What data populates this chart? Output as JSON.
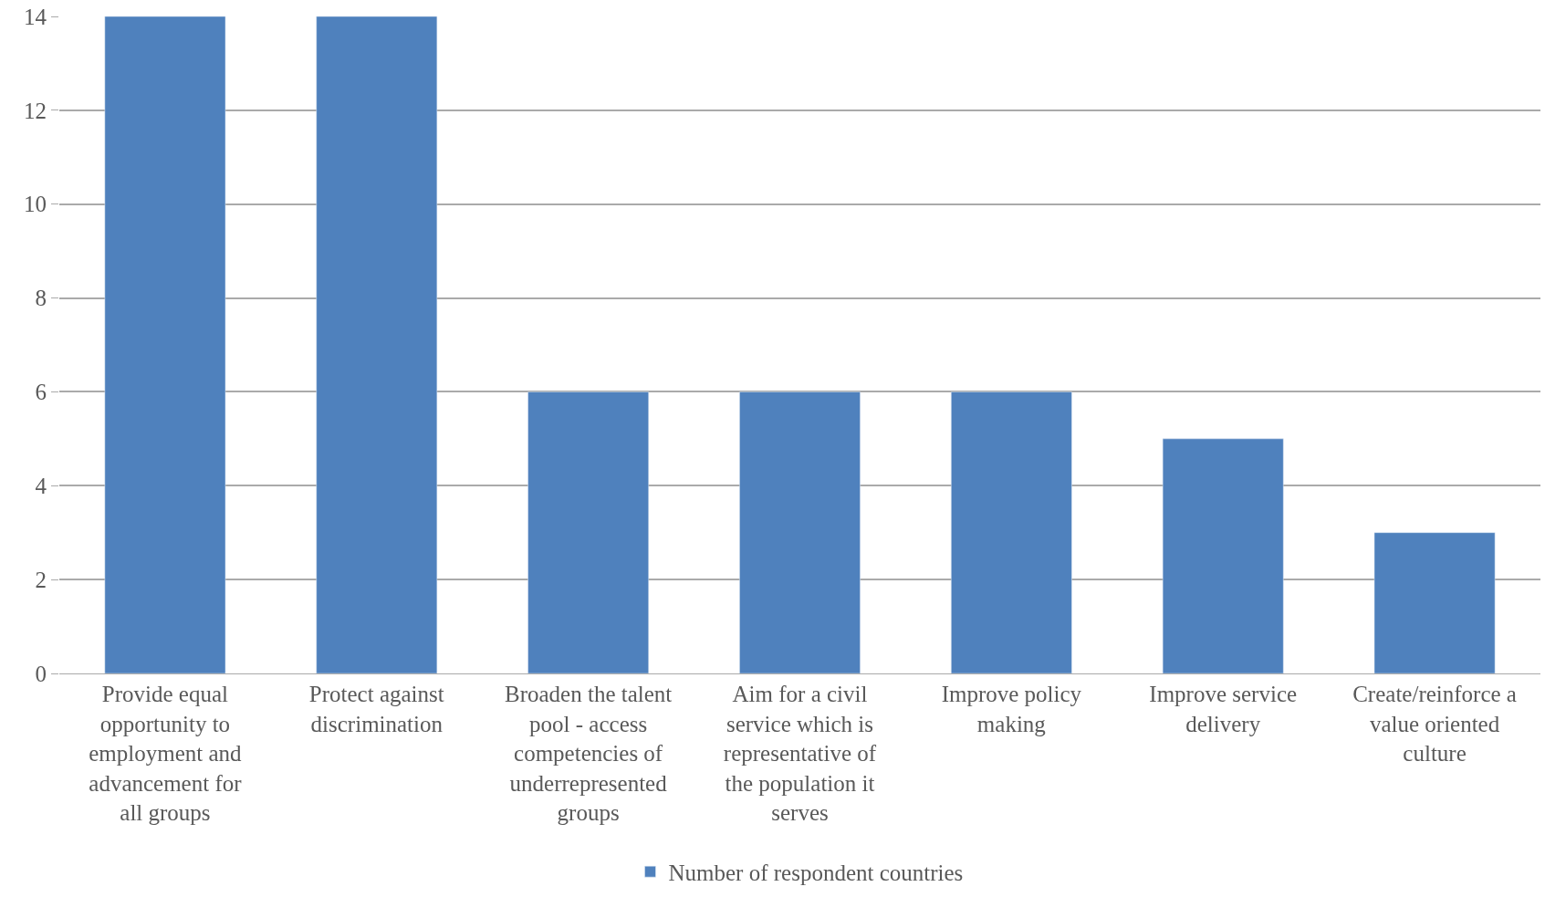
{
  "chart_data": {
    "type": "bar",
    "categories": [
      "Provide equal opportunity to employment and advancement for all groups",
      "Protect against discrimination",
      "Broaden the talent pool - access competencies of underrepresented groups",
      "Aim for a civil service which is representative of the population it serves",
      "Improve policy making",
      "Improve service delivery",
      "Create/reinforce a value oriented culture"
    ],
    "series": [
      {
        "name": "Number of respondent countries",
        "color": "#4f81bd",
        "values": [
          14,
          14,
          6,
          6,
          6,
          5,
          3
        ]
      }
    ],
    "ylim": [
      0,
      14
    ],
    "yticks": [
      0,
      2,
      4,
      6,
      8,
      10,
      12,
      14
    ],
    "grid": "y",
    "legend": "bottom"
  }
}
